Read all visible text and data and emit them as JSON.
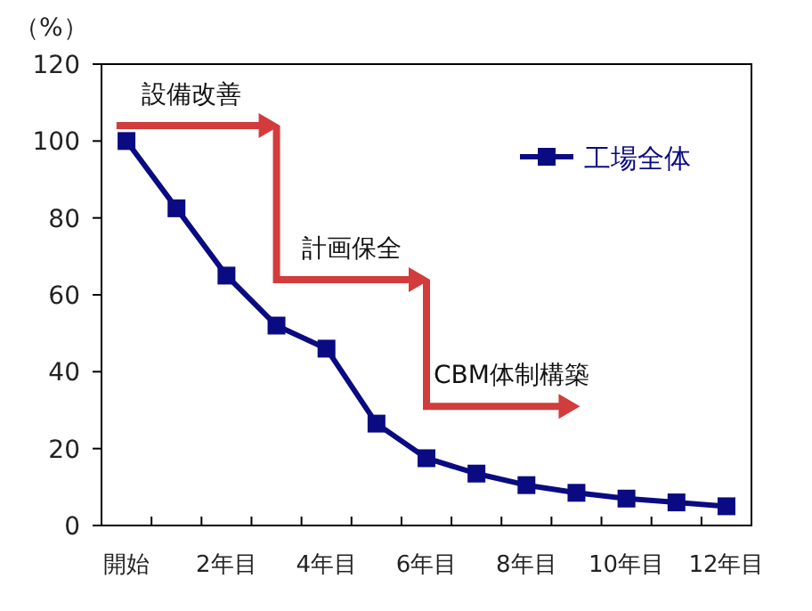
{
  "chart_data": {
    "type": "line",
    "ylabel": "（%）",
    "categories": [
      "開始",
      null,
      "2年目",
      null,
      "4年目",
      null,
      "6年目",
      null,
      "8年目",
      null,
      "10年目",
      null,
      "12年目"
    ],
    "series": [
      {
        "name": "工場全体",
        "color": "#0a0a82",
        "values": [
          100,
          82.5,
          65,
          52,
          46,
          26.5,
          17.5,
          13.5,
          10.5,
          8.5,
          7,
          6,
          5
        ]
      }
    ],
    "ylim": [
      0,
      120
    ],
    "yticks": [
      0,
      20,
      40,
      60,
      80,
      100,
      120
    ],
    "marker": "square",
    "legend": "top right",
    "grid": false,
    "annotations": [
      "設備改善",
      "計画保全",
      "CBM体制構築"
    ]
  }
}
